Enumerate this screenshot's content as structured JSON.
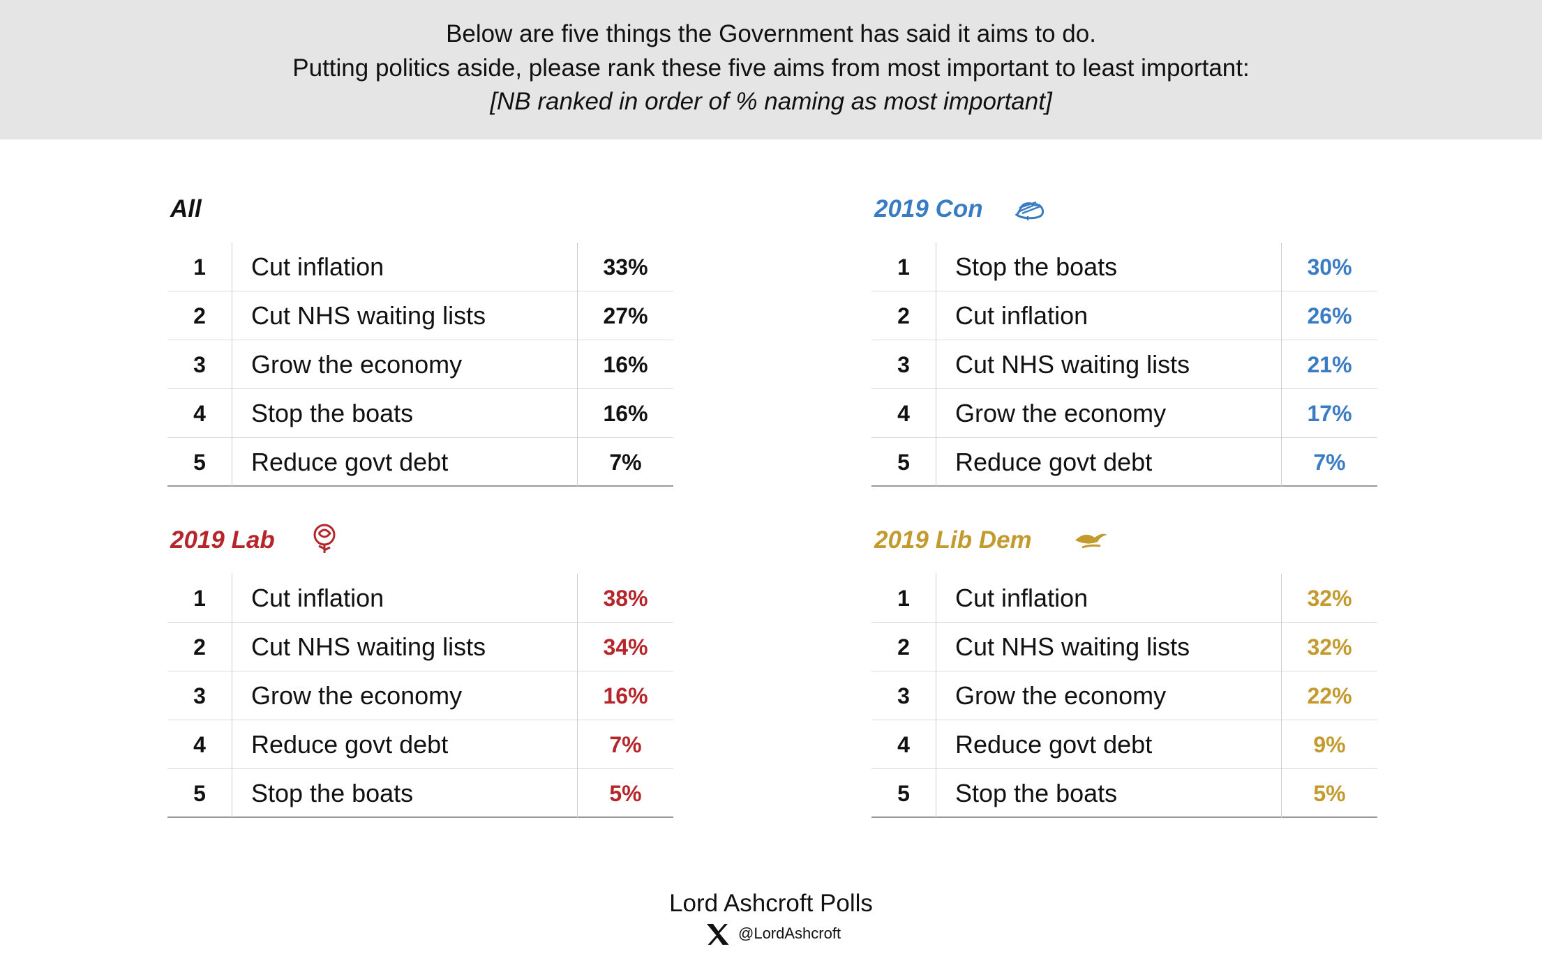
{
  "header": {
    "lines": [
      "Below are five things the Government has said it aims to do.",
      "Putting politics aside, please rank these five aims from most important to least important:",
      "[NB ranked in order of % naming as most important]"
    ]
  },
  "panels": [
    {
      "title": "All",
      "color": "#111111",
      "rows": [
        [
          "1",
          "Cut inflation",
          "33%"
        ],
        [
          "2",
          "Cut NHS waiting lists",
          "27%"
        ],
        [
          "3",
          "Grow the economy",
          "16%"
        ],
        [
          "4",
          "Stop the boats",
          "16%"
        ],
        [
          "5",
          "Reduce govt debt",
          "7%"
        ]
      ]
    },
    {
      "title": "2019 Con",
      "color": "#3a7cc4",
      "rows": [
        [
          "1",
          "Stop the boats",
          "30%"
        ],
        [
          "2",
          "Cut inflation",
          "26%"
        ],
        [
          "3",
          "Cut NHS waiting lists",
          "21%"
        ],
        [
          "4",
          "Grow the economy",
          "17%"
        ],
        [
          "5",
          "Reduce govt debt",
          "7%"
        ]
      ]
    },
    {
      "title": "2019 Lab",
      "color": "#b5252a",
      "rows": [
        [
          "1",
          "Cut inflation",
          "38%"
        ],
        [
          "2",
          "Cut NHS waiting lists",
          "34%"
        ],
        [
          "3",
          "Grow the economy",
          "16%"
        ],
        [
          "4",
          "Reduce govt debt",
          "7%"
        ],
        [
          "5",
          "Stop the boats",
          "5%"
        ]
      ]
    },
    {
      "title": "2019 Lib Dem",
      "color": "#c39a2e",
      "rows": [
        [
          "1",
          "Cut inflation",
          "32%"
        ],
        [
          "2",
          "Cut NHS waiting lists",
          "32%"
        ],
        [
          "3",
          "Grow the economy",
          "22%"
        ],
        [
          "4",
          "Reduce govt debt",
          "9%"
        ],
        [
          "5",
          "Stop the boats",
          "5%"
        ]
      ]
    }
  ],
  "footer": {
    "brand": "Lord Ashcroft Polls",
    "handle": "@LordAshcroft"
  }
}
